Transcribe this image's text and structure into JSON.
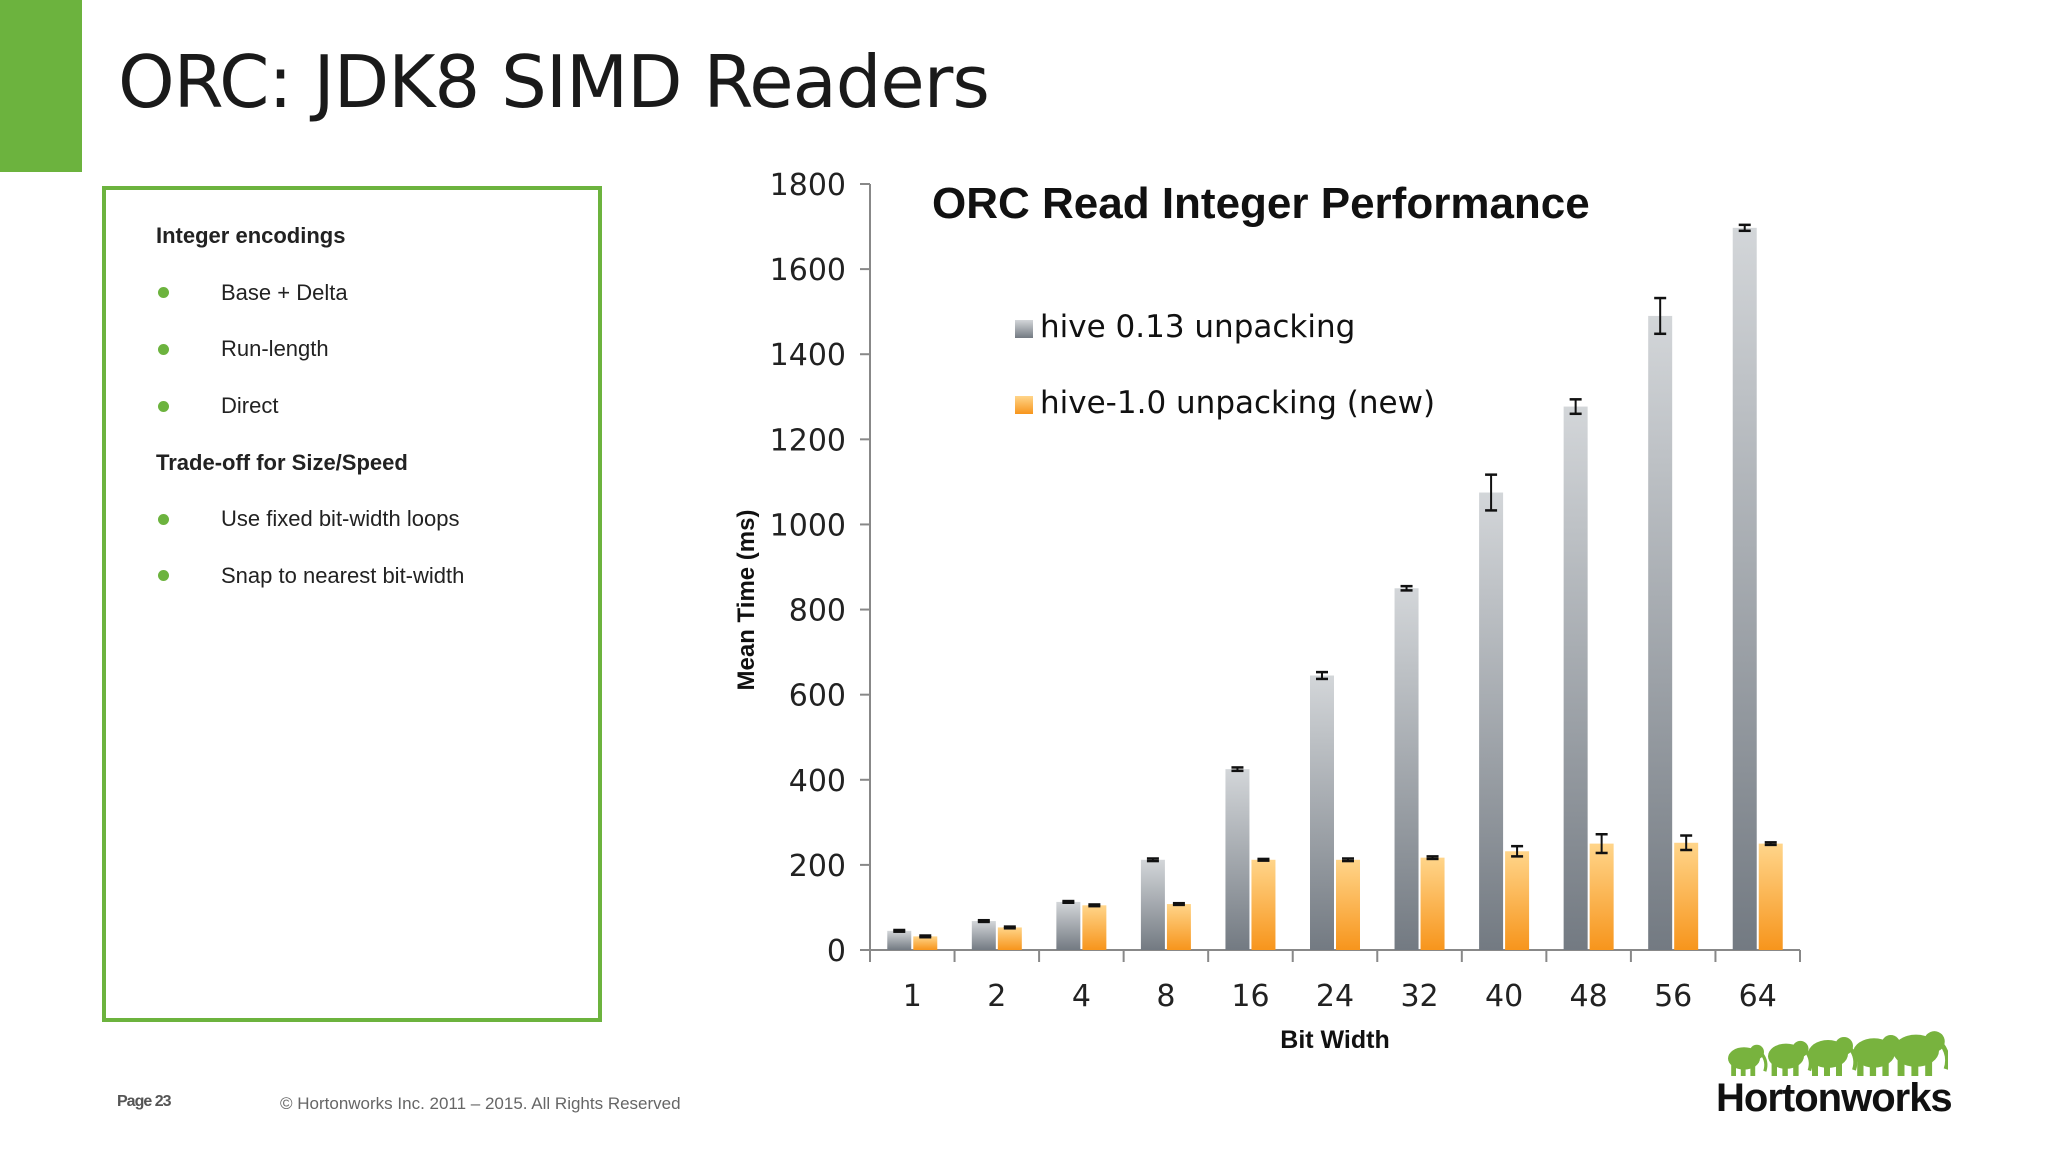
{
  "slide": {
    "title": "ORC: JDK8 SIMD Readers",
    "accent_color": "#6cb33e"
  },
  "bullets": [
    {
      "type": "heading",
      "text": "Integer encodings"
    },
    {
      "type": "item",
      "text": "Base + Delta"
    },
    {
      "type": "item",
      "text": "Run-length"
    },
    {
      "type": "item",
      "text": "Direct"
    },
    {
      "type": "heading",
      "text": "Trade-off for Size/Speed"
    },
    {
      "type": "item",
      "text": "Use fixed bit-width loops"
    },
    {
      "type": "item",
      "text": "Snap to nearest bit-width"
    }
  ],
  "chart_data": {
    "type": "bar",
    "title": "ORC Read Integer Performance",
    "xlabel": "Bit Width",
    "ylabel": "Mean Time (ms)",
    "ylim": [
      0,
      1800
    ],
    "yticks": [
      0,
      200,
      400,
      600,
      800,
      1000,
      1200,
      1400,
      1600,
      1800
    ],
    "categories": [
      "1",
      "2",
      "4",
      "8",
      "16",
      "24",
      "32",
      "40",
      "48",
      "56",
      "64"
    ],
    "legend_position": "top-left",
    "grid": false,
    "series": [
      {
        "name": "hive 0.13 unpacking",
        "color": "#8e9399",
        "values": [
          45,
          68,
          113,
          212,
          425,
          645,
          850,
          1075,
          1277,
          1490,
          1697
        ],
        "errors": [
          2,
          2,
          2,
          3,
          4,
          8,
          5,
          42,
          17,
          42,
          7
        ]
      },
      {
        "name": "hive-1.0 unpacking (new)",
        "color": "#f7a12a",
        "values": [
          32,
          53,
          105,
          108,
          212,
          212,
          217,
          232,
          250,
          252,
          250
        ],
        "errors": [
          2,
          2,
          2,
          2,
          2,
          3,
          3,
          12,
          22,
          17,
          3
        ]
      }
    ]
  },
  "footer": {
    "page_label": "Page 23",
    "copyright": "© Hortonworks Inc. 2011 – 2015. All Rights Reserved"
  },
  "logo": {
    "text": "Hortonworks",
    "icon": "elephants-logo-icon",
    "color": "#78b33e"
  }
}
